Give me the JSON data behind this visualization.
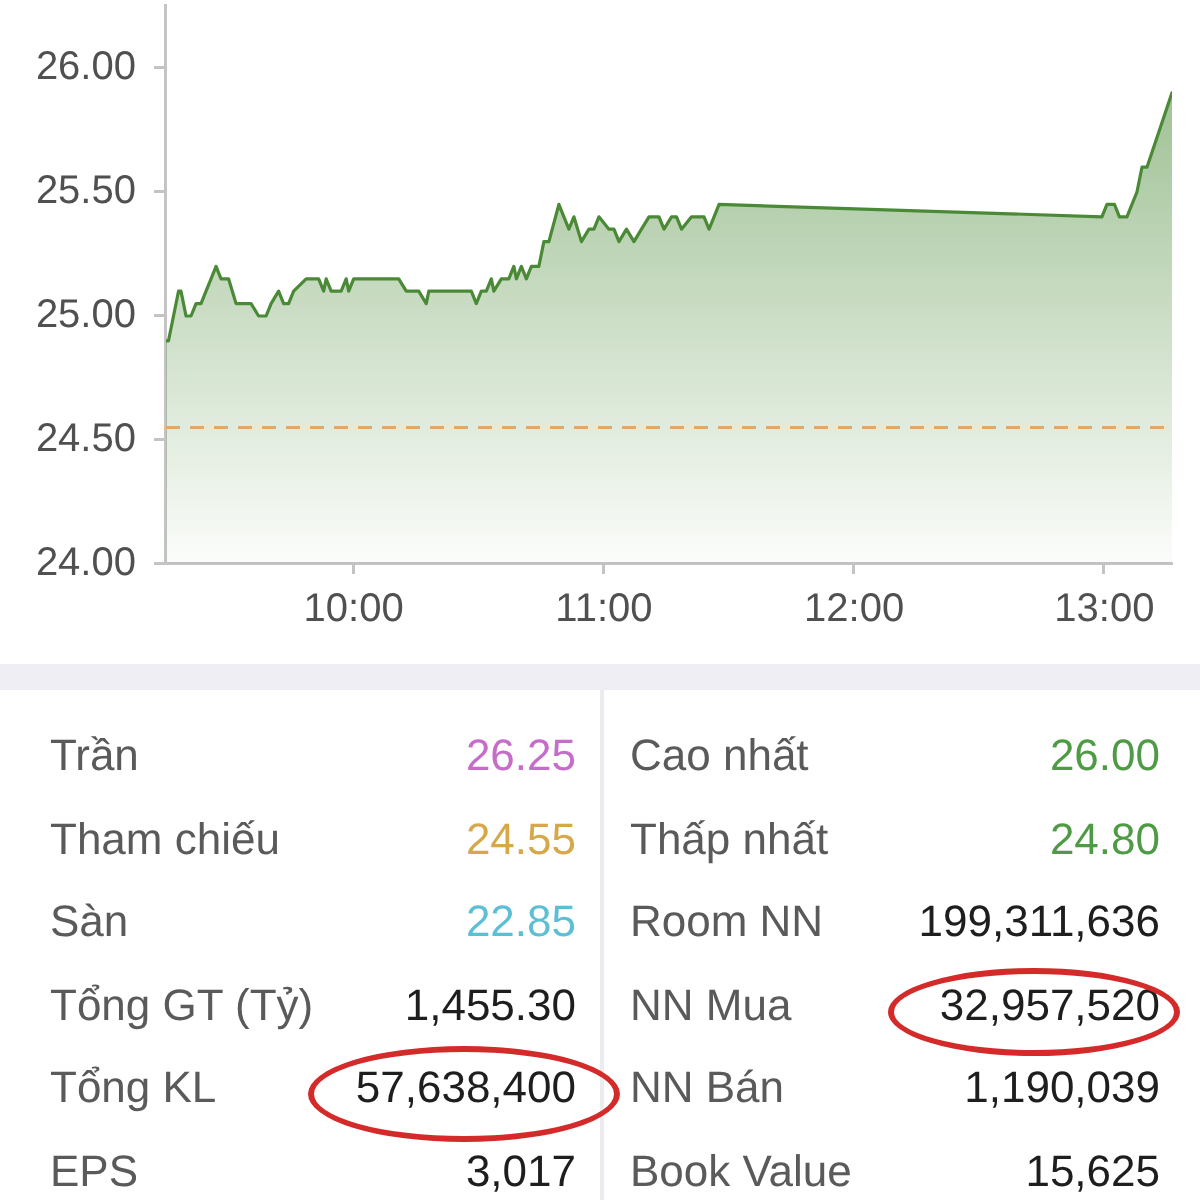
{
  "chart_data": [
    {
      "type": "area",
      "x": [
        9.25,
        9.26,
        9.3,
        9.31,
        9.33,
        9.35,
        9.37,
        9.39,
        9.41,
        9.43,
        9.45,
        9.47,
        9.5,
        9.53,
        9.59,
        9.62,
        9.65,
        9.67,
        9.7,
        9.72,
        9.74,
        9.76,
        9.81,
        9.86,
        9.88,
        9.89,
        9.91,
        9.95,
        9.97,
        9.98,
        10.0,
        10.18,
        10.21,
        10.26,
        10.29,
        10.3,
        10.47,
        10.49,
        10.51,
        10.53,
        10.55,
        10.56,
        10.59,
        10.62,
        10.64,
        10.65,
        10.67,
        10.69,
        10.71,
        10.74,
        10.76,
        10.78,
        10.82,
        10.84,
        10.86,
        10.88,
        10.91,
        10.94,
        10.96,
        10.98,
        11.02,
        11.04,
        11.06,
        11.09,
        11.12,
        11.15,
        11.18,
        11.22,
        11.24,
        11.27,
        11.29,
        11.31,
        11.35,
        11.4,
        11.42,
        11.44,
        11.46,
        12.99,
        13.01,
        13.04,
        13.06,
        13.09,
        13.11,
        13.13,
        13.15,
        13.17,
        13.27
      ],
      "values": [
        24.9,
        24.9,
        25.1,
        25.1,
        25.0,
        25.0,
        25.05,
        25.05,
        25.1,
        25.15,
        25.2,
        25.15,
        25.15,
        25.05,
        25.05,
        25.0,
        25.0,
        25.05,
        25.1,
        25.05,
        25.05,
        25.1,
        25.15,
        25.15,
        25.1,
        25.15,
        25.1,
        25.1,
        25.15,
        25.1,
        25.15,
        25.15,
        25.1,
        25.1,
        25.05,
        25.1,
        25.1,
        25.05,
        25.1,
        25.1,
        25.15,
        25.1,
        25.15,
        25.15,
        25.2,
        25.15,
        25.2,
        25.15,
        25.2,
        25.2,
        25.3,
        25.3,
        25.45,
        25.4,
        25.35,
        25.4,
        25.3,
        25.35,
        25.35,
        25.4,
        25.35,
        25.35,
        25.3,
        25.35,
        25.3,
        25.35,
        25.4,
        25.4,
        25.35,
        25.4,
        25.4,
        25.35,
        25.4,
        25.4,
        25.35,
        25.4,
        25.45,
        25.4,
        25.45,
        25.45,
        25.4,
        25.4,
        25.45,
        25.5,
        25.6,
        25.6,
        25.9
      ],
      "color": "#4a8a36",
      "xlim": [
        9.25,
        13.27
      ],
      "xticks": [
        {
          "value": 10,
          "label": "10:00"
        },
        {
          "value": 11,
          "label": "11:00"
        },
        {
          "value": 12,
          "label": "12:00"
        },
        {
          "value": 13,
          "label": "13:00"
        }
      ],
      "ylim": [
        24,
        26.25
      ],
      "yticks": [
        {
          "value": 24,
          "label": "24.00"
        },
        {
          "value": 24.5,
          "label": "24.50"
        },
        {
          "value": 25,
          "label": "25.00"
        },
        {
          "value": 25.5,
          "label": "25.50"
        },
        {
          "value": 26,
          "label": "26.00"
        }
      ],
      "ref_lines": [
        {
          "axis": "y",
          "value": 24.55,
          "color": "#e3a868",
          "line_style": "dashed"
        }
      ],
      "legend": false
    },
    {
      "type": "other",
      "annotations": [
        "Trần",
        "26.25",
        "Cao nhất",
        "26.00",
        "Tham chiếu",
        "24.55",
        "Thấp nhất",
        "24.80",
        "Sàn",
        "22.85",
        "Room NN",
        "199,311,636",
        "Tổng GT (Tỷ)",
        "1,455.30",
        "NN Mua",
        "32,957,520",
        "Tổng KL",
        "57,638,400",
        "NN Bán",
        "1,190,039",
        "EPS",
        "3,017",
        "Book Value",
        "15,625"
      ],
      "colors": [
        "#5a5a5a",
        "#c66cc9",
        "#5a5a5a",
        "#4f9a45",
        "#5a5a5a",
        "#d6a84a",
        "#5a5a5a",
        "#4f9a45",
        "#5a5a5a",
        "#5cbfd6",
        "#5a5a5a",
        "#1e1e1e",
        "#5a5a5a",
        "#1e1e1e",
        "#5a5a5a",
        "#1e1e1e",
        "#5a5a5a",
        "#1e1e1e",
        "#5a5a5a",
        "#1e1e1e",
        "#5a5a5a",
        "#1e1e1e",
        "#5a5a5a",
        "#1e1e1e"
      ]
    }
  ]
}
